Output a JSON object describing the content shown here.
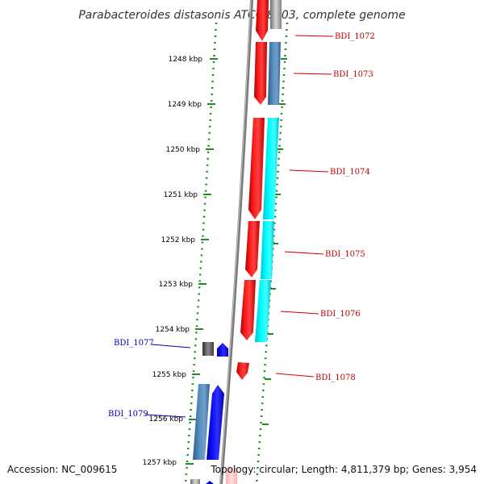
{
  "title": "Parabacteroides distasonis ATCC 8503, complete genome",
  "footer": {
    "accession": "Accession: NC_009615",
    "summary": "Topology: circular; Length: 4,811,379 bp; Genes: 3,954"
  },
  "ruler": {
    "unit": "kbp",
    "ticks": [
      "1248 kbp",
      "1249 kbp",
      "1250 kbp",
      "1251 kbp",
      "1252 kbp",
      "1253 kbp",
      "1254 kbp",
      "1255 kbp",
      "1256 kbp",
      "1257 kbp"
    ]
  },
  "genes": [
    {
      "id": "BDI_1072",
      "strand": "+",
      "color": "#ff0000",
      "track_color": "#a0a0a0"
    },
    {
      "id": "BDI_1073",
      "strand": "+",
      "color": "#ff0000",
      "track_color": "#4682b4"
    },
    {
      "id": "BDI_1074",
      "strand": "+",
      "color": "#ff0000",
      "track_color": "#00ffff"
    },
    {
      "id": "BDI_1075",
      "strand": "+",
      "color": "#ff0000",
      "track_color": "#00ffff"
    },
    {
      "id": "BDI_1076",
      "strand": "+",
      "color": "#ff0000",
      "track_color": "#00ffff"
    },
    {
      "id": "BDI_1077",
      "strand": "-",
      "color": "#0000ff",
      "track_color": "#606060"
    },
    {
      "id": "BDI_1078",
      "strand": "+",
      "color": "#ff0000",
      "track_color": ""
    },
    {
      "id": "BDI_1079",
      "strand": "-",
      "color": "#0000ff",
      "track_color": "#4682b4"
    }
  ],
  "colors": {
    "forward_strand": "#ff0000",
    "reverse_strand": "#0000ff",
    "fwd_label": "#c00000",
    "rev_label": "#0000b0",
    "backbone": "#808080",
    "ruler_dots": "#228b22"
  }
}
